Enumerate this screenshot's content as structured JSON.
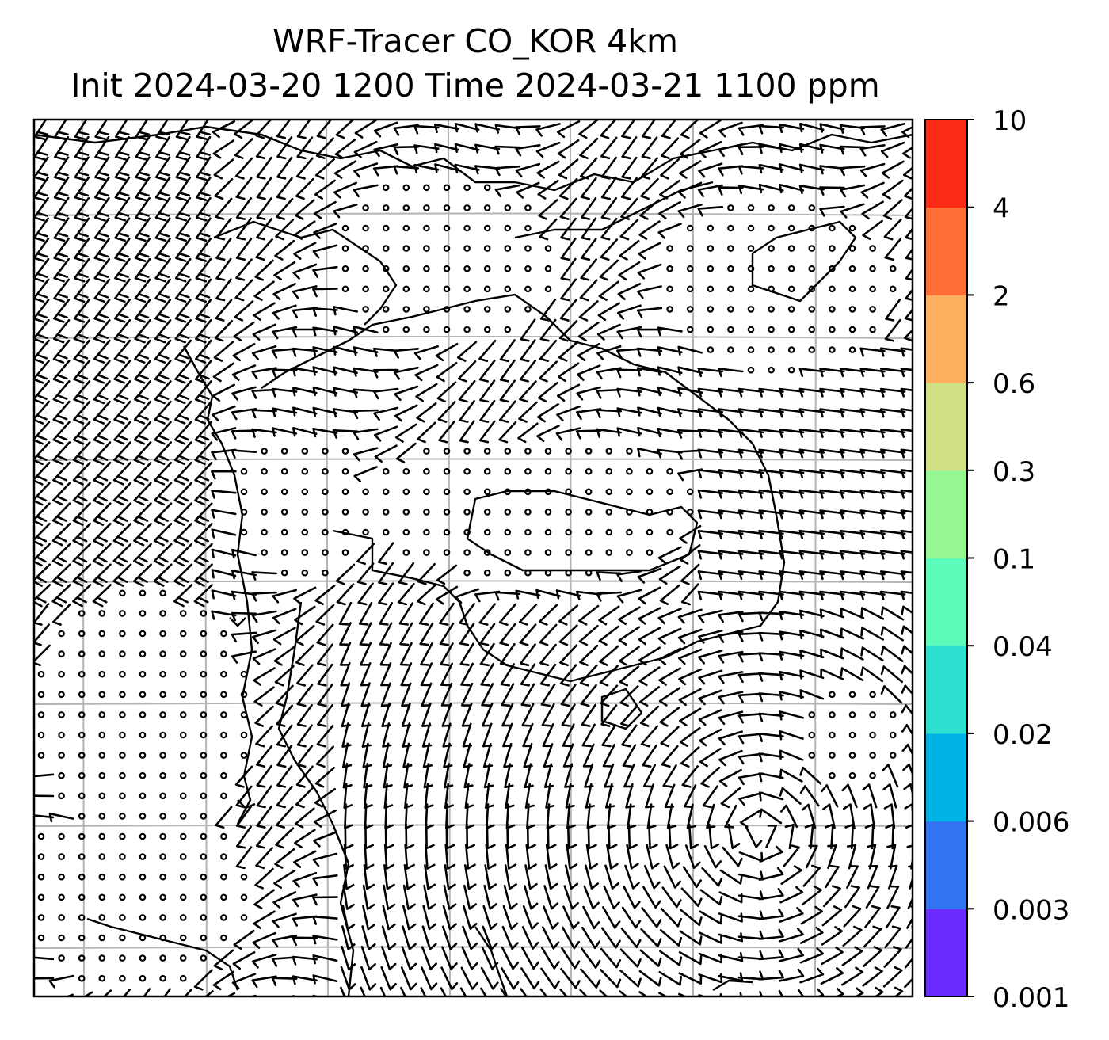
{
  "title": {
    "line1": "WRF-Tracer CO_KOR 4km",
    "line2": "Init 2024-03-20 1200 Time 2024-03-21 1100 ppm"
  },
  "map": {
    "projection_grid": "on",
    "features": [
      "coastlines",
      "wind-barbs",
      "calm-circles",
      "gridlines"
    ],
    "tracer_field": "CO_KOR",
    "units": "ppm"
  },
  "colorbar": {
    "tick_labels": [
      "0.001",
      "0.003",
      "0.006",
      "0.02",
      "0.04",
      "0.1",
      "0.3",
      "0.6",
      "2",
      "4",
      "10"
    ],
    "bins": [
      {
        "from": "0.001",
        "to": "0.003",
        "color": "#6a2bff"
      },
      {
        "from": "0.003",
        "to": "0.006",
        "color": "#3373f2"
      },
      {
        "from": "0.006",
        "to": "0.02",
        "color": "#00b3e6"
      },
      {
        "from": "0.02",
        "to": "0.04",
        "color": "#2ee0cf"
      },
      {
        "from": "0.04",
        "to": "0.1",
        "color": "#5cfbba"
      },
      {
        "from": "0.1",
        "to": "0.3",
        "color": "#94f792"
      },
      {
        "from": "0.3",
        "to": "0.6",
        "color": "#d0e084"
      },
      {
        "from": "0.6",
        "to": "2",
        "color": "#fdb060"
      },
      {
        "from": "2",
        "to": "4",
        "color": "#fe6e37"
      },
      {
        "from": "4",
        "to": "10",
        "color": "#fa2a16"
      }
    ]
  }
}
